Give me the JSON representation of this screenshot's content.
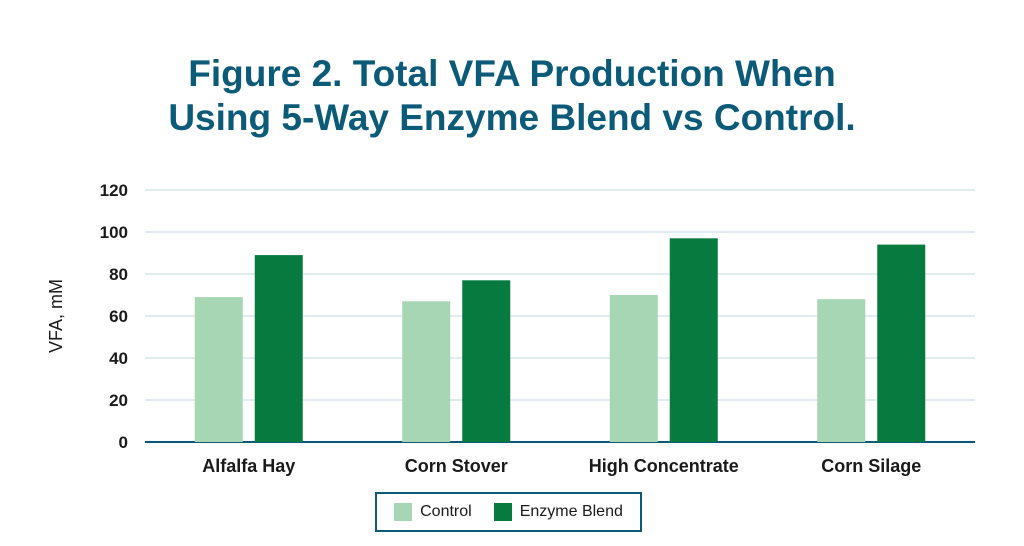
{
  "chart_data": {
    "type": "bar",
    "title_lines": [
      "Figure 2. Total VFA Production When",
      "Using 5-Way Enzyme Blend vs Control."
    ],
    "xlabel": "",
    "ylabel": "VFA, mM",
    "ylim": [
      0,
      120
    ],
    "yticks": [
      0,
      20,
      40,
      60,
      80,
      100,
      120
    ],
    "grid": true,
    "legend_position": "bottom-center",
    "categories": [
      "Alfalfa Hay",
      "Corn Stover",
      "High Concentrate",
      "Corn Silage"
    ],
    "series": [
      {
        "name": "Control",
        "color": "#a6d6b3",
        "values": [
          69,
          67,
          70,
          68
        ]
      },
      {
        "name": "Enzyme Blend",
        "color": "#067a3f",
        "values": [
          89,
          77,
          97,
          94
        ]
      }
    ],
    "colors": {
      "title": "#0b5a78",
      "axis": "#0b5a78",
      "grid": "#d6e6ea",
      "legend_border": "#0b5a78"
    }
  }
}
